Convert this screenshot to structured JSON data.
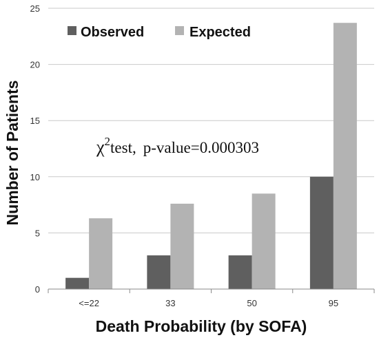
{
  "chart_data": {
    "type": "bar",
    "categories": [
      "<=22",
      "33",
      "50",
      "95"
    ],
    "series": [
      {
        "name": "Observed",
        "values": [
          1,
          3,
          3,
          10
        ],
        "color": "#5f5f5f"
      },
      {
        "name": "Expected",
        "values": [
          6.3,
          7.6,
          8.5,
          23.7
        ],
        "color": "#b3b3b3"
      }
    ],
    "xlabel": "Death Probability (by SOFA)",
    "ylabel": "Number of Patients",
    "ylim": [
      0,
      25
    ],
    "yticks": [
      0,
      5,
      10,
      15,
      20,
      25
    ],
    "legend_position": "top-left",
    "grid": true,
    "annotation": {
      "chi": "χ",
      "sup": "2",
      "sub": "test,",
      "text": "p-value=0.000303"
    }
  }
}
